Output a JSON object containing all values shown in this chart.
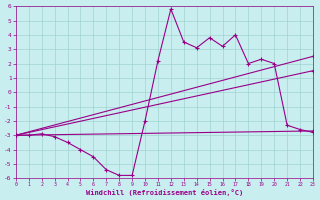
{
  "xlabel": "Windchill (Refroidissement éolien,°C)",
  "bg_color": "#c8eef0",
  "grid_color": "#a0d4d0",
  "line_color": "#990088",
  "xlim": [
    0,
    23
  ],
  "ylim": [
    -6,
    6
  ],
  "xticks": [
    0,
    1,
    2,
    3,
    4,
    5,
    6,
    7,
    8,
    9,
    10,
    11,
    12,
    13,
    14,
    15,
    16,
    17,
    18,
    19,
    20,
    21,
    22,
    23
  ],
  "yticks": [
    -6,
    -5,
    -4,
    -3,
    -2,
    -1,
    0,
    1,
    2,
    3,
    4,
    5,
    6
  ],
  "series0_x": [
    0,
    1,
    2,
    3,
    4,
    5,
    6,
    7,
    8,
    9,
    10,
    11,
    12,
    13,
    14,
    15,
    16,
    17,
    18,
    19,
    20,
    21,
    22,
    23
  ],
  "series0_y": [
    -3,
    -3,
    -2.9,
    -3.1,
    -3.5,
    -4.0,
    -4.5,
    -5.4,
    -5.8,
    -5.8,
    -2.0,
    2.2,
    5.8,
    3.5,
    3.1,
    3.8,
    3.2,
    4.0,
    2.0,
    2.3,
    2.0,
    -2.3,
    -2.6,
    -2.8
  ],
  "series1_x": [
    0,
    23
  ],
  "series1_y": [
    -3,
    -2.7
  ],
  "series2_x": [
    0,
    23
  ],
  "series2_y": [
    -3,
    2.5
  ],
  "series3_x": [
    0,
    23
  ],
  "series3_y": [
    -3,
    1.5
  ]
}
